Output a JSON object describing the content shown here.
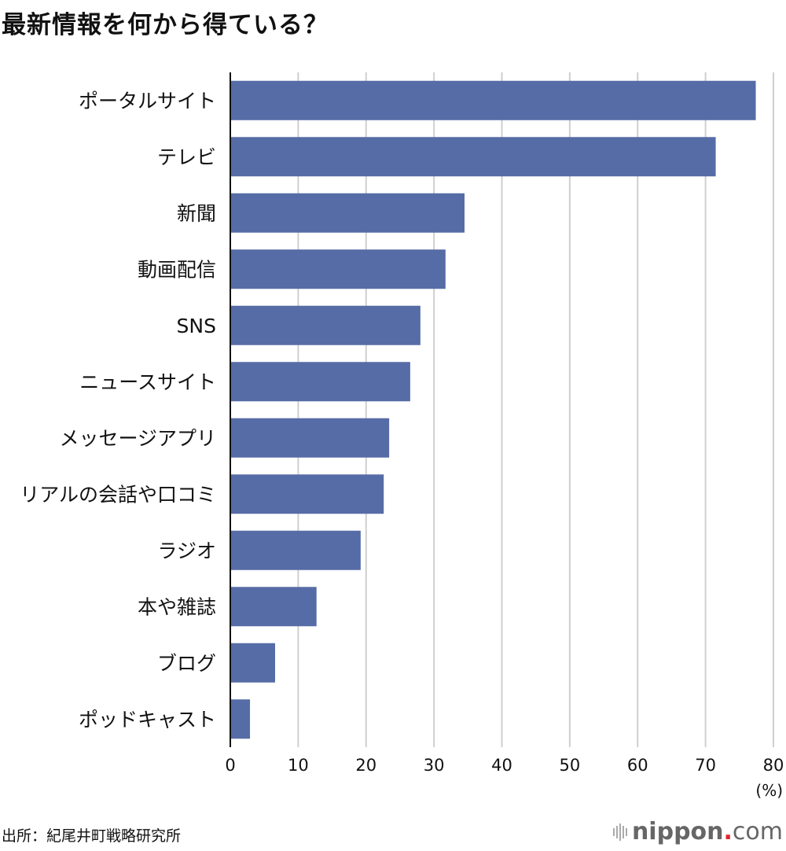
{
  "chart_data": {
    "type": "bar",
    "orientation": "horizontal",
    "title": "最新情報を何から得ている？",
    "categories": [
      "ポータルサイト",
      "テレビ",
      "新聞",
      "動画配信",
      "SNS",
      "ニュースサイト",
      "メッセージアプリ",
      "リアルの会話や口コミ",
      "ラジオ",
      "本や雑誌",
      "ブログ",
      "ポッドキャスト"
    ],
    "values": [
      77.4,
      71.5,
      34.5,
      31.7,
      28.0,
      26.5,
      23.4,
      22.6,
      19.2,
      12.7,
      6.6,
      2.9
    ],
    "xlim": [
      0,
      80
    ],
    "xticks": [
      "0",
      "10",
      "20",
      "30",
      "40",
      "50",
      "60",
      "70",
      "80"
    ],
    "xunit": "(%)",
    "grid": true,
    "bar_color": "#566ca6"
  },
  "source": "出所：紀尾井町戦略研究所",
  "logo": {
    "name": "nippon",
    "dot": ".",
    "suffix": "com"
  }
}
